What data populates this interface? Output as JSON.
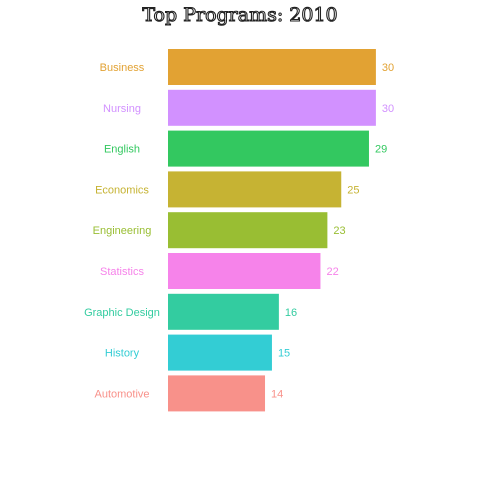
{
  "chart_data": {
    "type": "bar",
    "orientation": "horizontal",
    "title": "Top Programs: 2010",
    "categories": [
      "Business",
      "Nursing",
      "English",
      "Economics",
      "Engineering",
      "Statistics",
      "Graphic Design",
      "History",
      "Automotive"
    ],
    "values": [
      30,
      30,
      29,
      25,
      23,
      22,
      16,
      15,
      14
    ],
    "colors": [
      "#E2A233",
      "#D291FF",
      "#33C860",
      "#C6B333",
      "#99BE33",
      "#F683EA",
      "#33CCA0",
      "#33CDD4",
      "#F8918A"
    ],
    "xlim": [
      0,
      30
    ],
    "grid": false,
    "legend": "none",
    "data_labels": true
  }
}
